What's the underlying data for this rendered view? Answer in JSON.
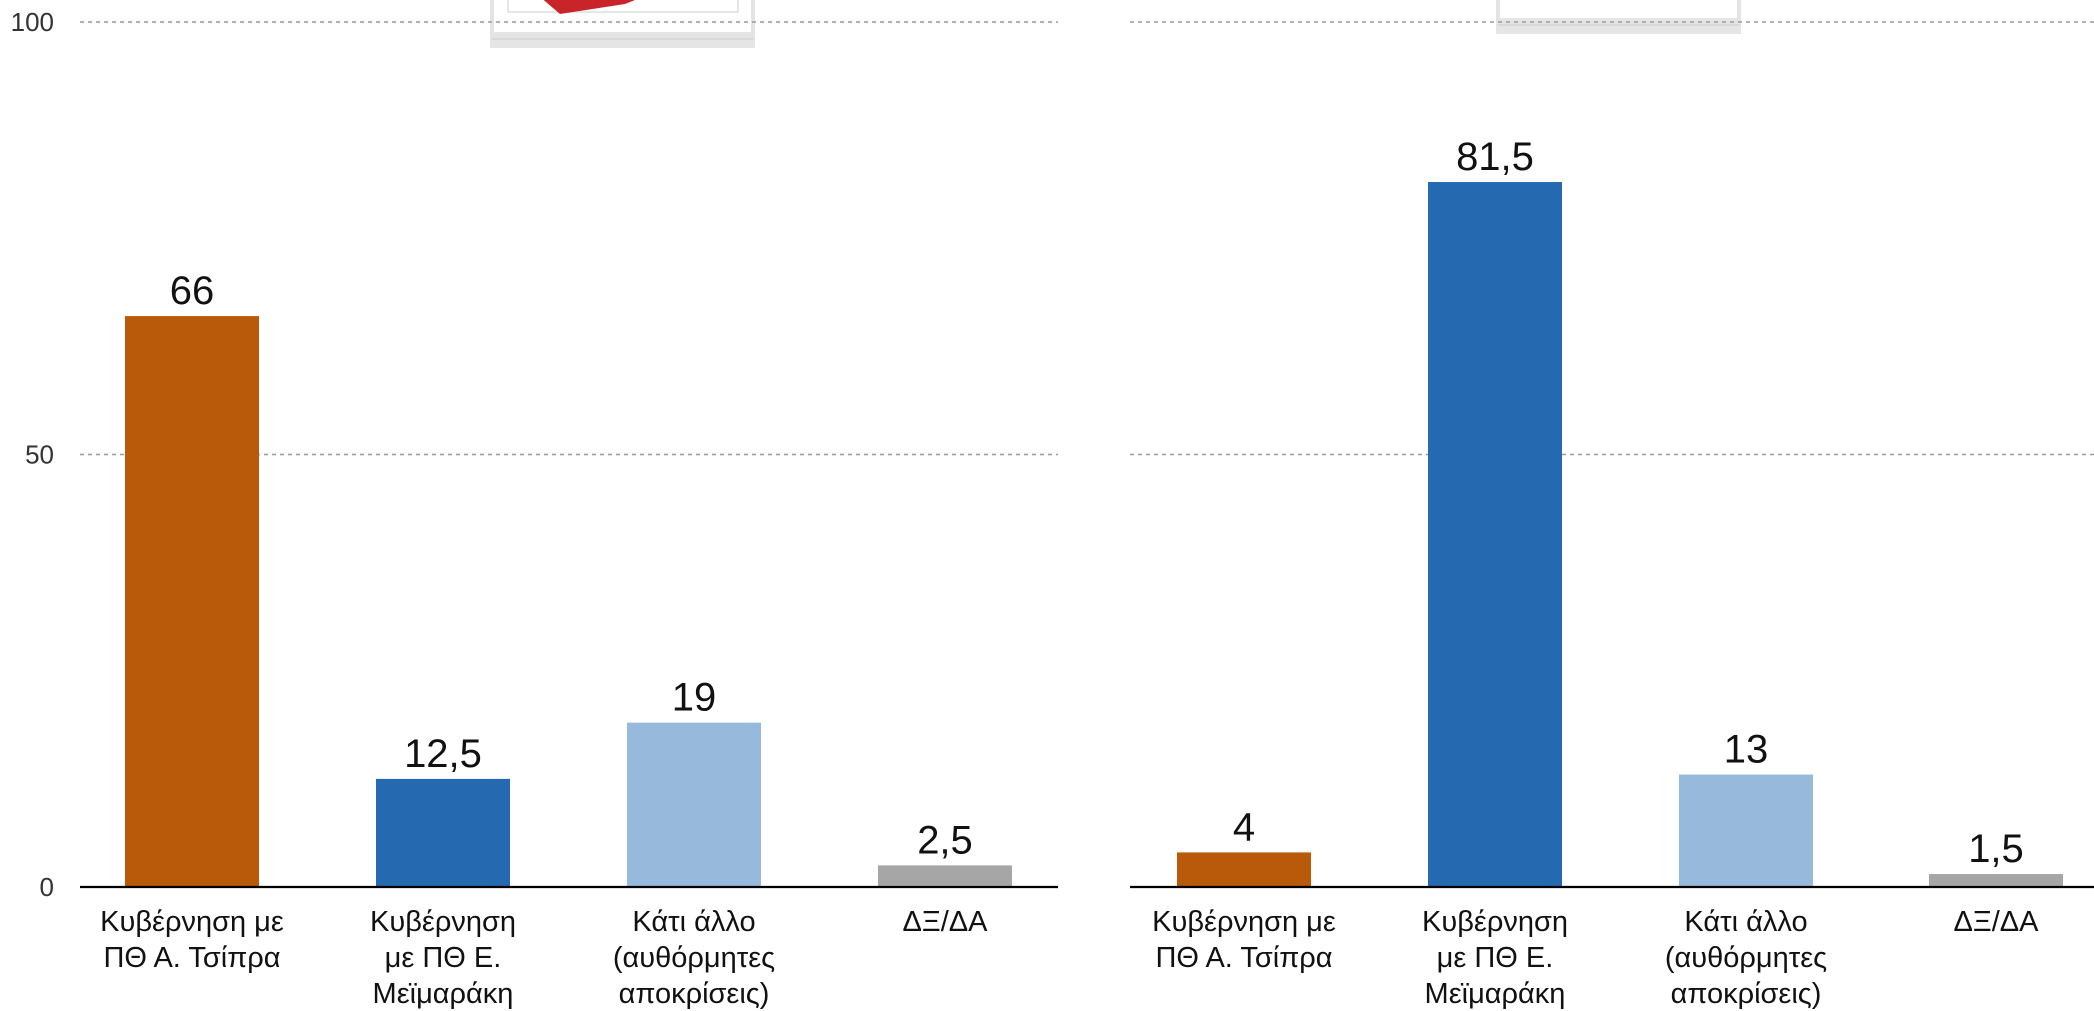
{
  "chart_data": [
    {
      "type": "bar",
      "categories": [
        [
          "Κυβέρνηση με",
          "ΠΘ Α. Τσίπρα"
        ],
        [
          "Κυβέρνηση",
          "με ΠΘ Ε.",
          "Μεϊμαράκη"
        ],
        [
          "Κάτι άλλο",
          "(αυθόρμητες",
          "αποκρίσεις)"
        ],
        [
          "ΔΞ/ΔΑ"
        ]
      ],
      "values": [
        66,
        12.5,
        19,
        2.5
      ],
      "value_labels": [
        "66",
        "12,5",
        "19",
        "2,5"
      ],
      "colors": [
        "#b95a0a",
        "#2569b1",
        "#97b9db",
        "#a6a6a6"
      ],
      "ylim": [
        0,
        100
      ],
      "yticks": [
        0,
        50,
        100
      ],
      "ytick_labels": [
        "0",
        "50",
        "100"
      ],
      "grid": true
    },
    {
      "type": "bar",
      "categories": [
        [
          "Κυβέρνηση με",
          "ΠΘ Α. Τσίπρα"
        ],
        [
          "Κυβέρνηση",
          "με ΠΘ Ε.",
          "Μεϊμαράκη"
        ],
        [
          "Κάτι άλλο",
          "(αυθόρμητες",
          "αποκρίσεις)"
        ],
        [
          "ΔΞ/ΔΑ"
        ]
      ],
      "values": [
        4,
        81.5,
        13,
        1.5
      ],
      "value_labels": [
        "4",
        "81,5",
        "13",
        "1,5"
      ],
      "colors": [
        "#b95a0a",
        "#2569b1",
        "#97b9db",
        "#a6a6a6"
      ],
      "ylim": [
        0,
        100
      ],
      "yticks": [
        0,
        50,
        100
      ],
      "grid": true
    }
  ],
  "colors": {
    "logo_red": "#c8242a"
  }
}
